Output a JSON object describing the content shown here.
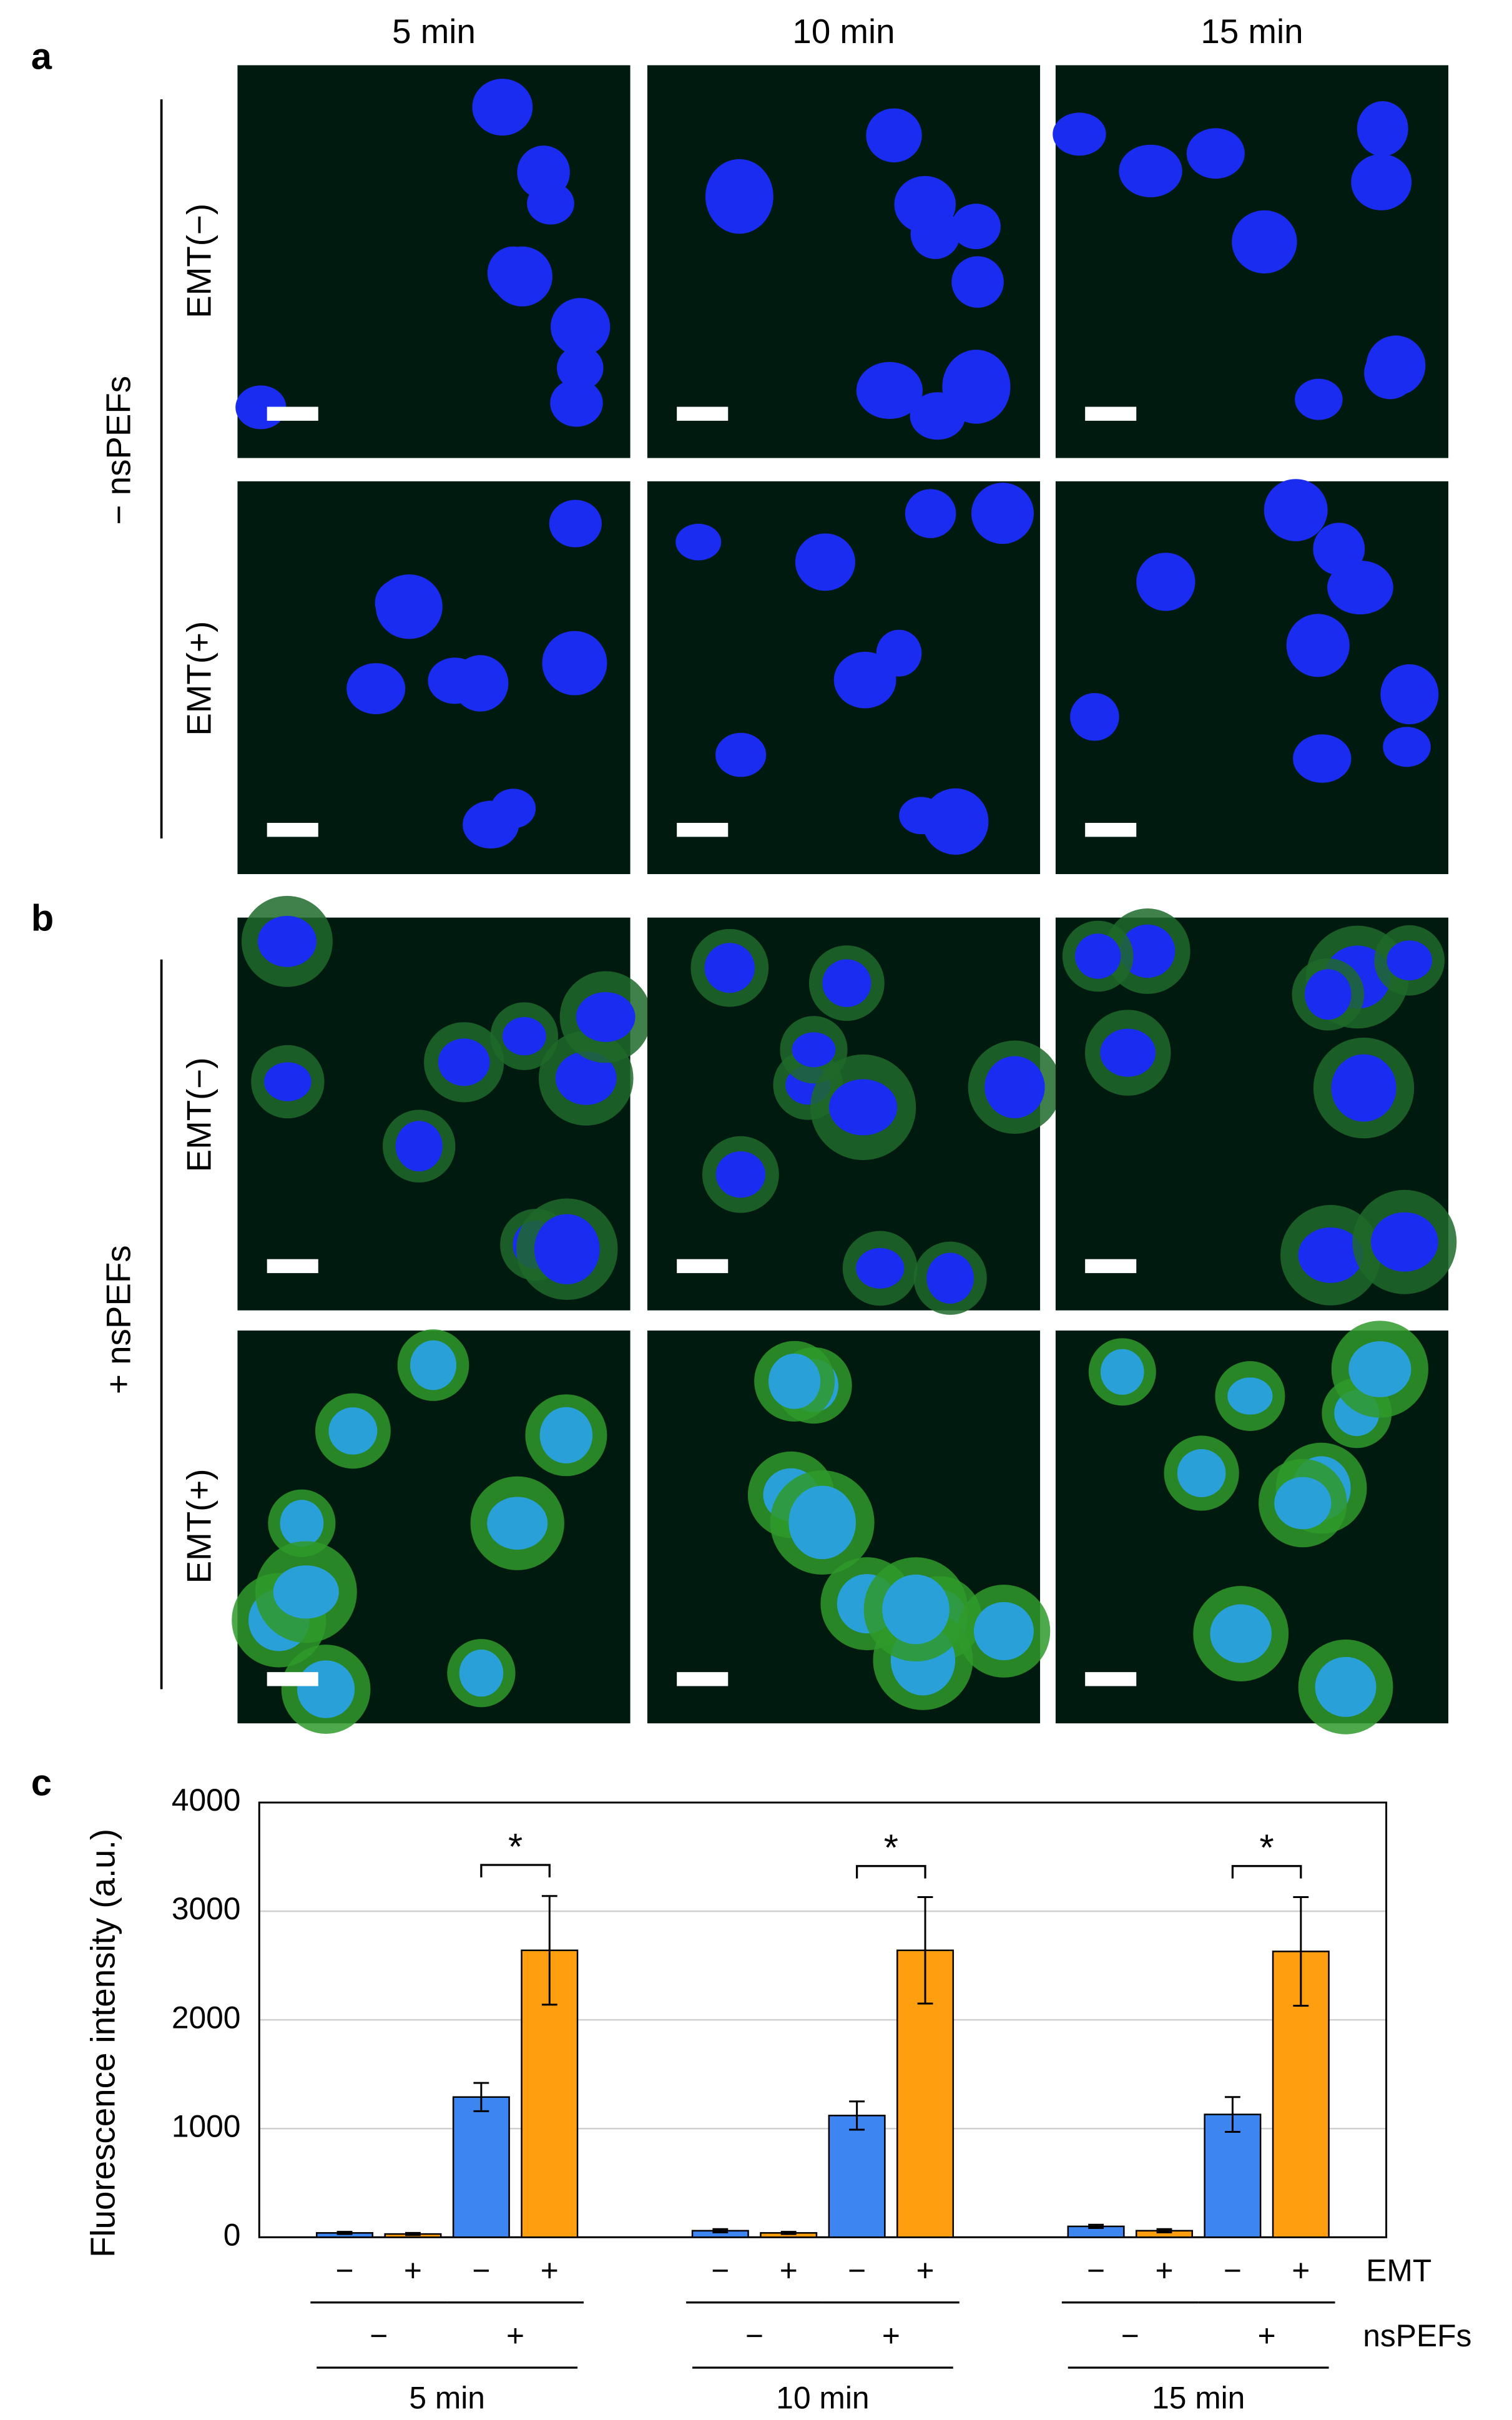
{
  "figure": {
    "panels": [
      "a",
      "b",
      "c"
    ],
    "columns": [
      "5 min",
      "10 min",
      "15 min"
    ],
    "rows": [
      "EMT(−)",
      "EMT(+)"
    ],
    "groups": [
      "− nsPEFs",
      "+ nsPEFs"
    ]
  },
  "chart_data": {
    "type": "bar",
    "ylabel": "Fluorescence intensity (a.u.)",
    "categories": [
      "5 min",
      "10 min",
      "15 min"
    ],
    "series": [
      {
        "color": "#3d85f0",
        "values": [
          40,
          60,
          100
        ],
        "errors": [
          10,
          15,
          15
        ]
      },
      {
        "color": "#ff9f10",
        "values": [
          30,
          40,
          60
        ],
        "errors": [
          10,
          10,
          15
        ]
      },
      {
        "color": "#3d85f0",
        "values": [
          1290,
          1120,
          1130
        ],
        "errors": [
          130,
          130,
          160
        ]
      },
      {
        "color": "#ff9f10",
        "values": [
          2640,
          2640,
          2630
        ],
        "errors": [
          500,
          490,
          500
        ]
      }
    ],
    "ylim": [
      0,
      4000
    ],
    "yticks": [
      0,
      1000,
      2000,
      3000,
      4000
    ],
    "grid": true,
    "row_titles": [
      "EMT",
      "nsPEFs"
    ],
    "emt_labels": [
      "−",
      "+",
      "−",
      "+"
    ],
    "nspefs_labels": [
      "−",
      "+"
    ],
    "annotations": [
      "*",
      "*",
      "*"
    ]
  }
}
